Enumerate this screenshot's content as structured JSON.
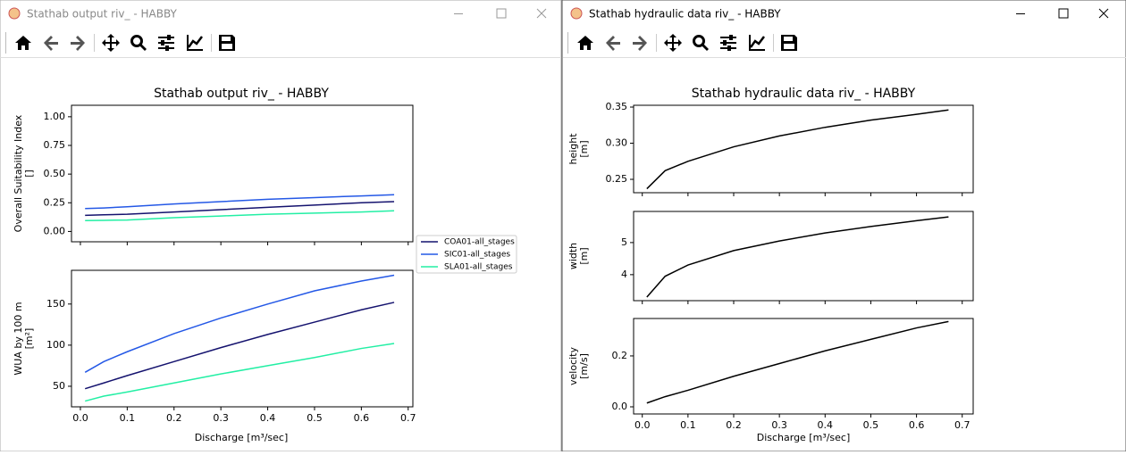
{
  "windows": [
    {
      "title": "Stathab output riv_ - HABBY"
    },
    {
      "title": "Stathab hydraulic data riv_ - HABBY"
    }
  ],
  "figures": [
    {
      "title": "Stathab output riv_ - HABBY",
      "xlabel": "Discharge [m³/sec]"
    },
    {
      "title": "Stathab hydraulic data riv_ - HABBY",
      "xlabel": "Discharge [m³/sec]"
    }
  ],
  "chart_data": [
    {
      "type": "line",
      "ylabel": [
        "Overall Suitability Index",
        "[]"
      ],
      "x": [
        0.01,
        0.05,
        0.1,
        0.2,
        0.3,
        0.4,
        0.5,
        0.6,
        0.67
      ],
      "series": [
        {
          "name": "COA01-all_stages",
          "color": "#14126e",
          "values": [
            0.14,
            0.145,
            0.15,
            0.17,
            0.19,
            0.21,
            0.23,
            0.25,
            0.26
          ]
        },
        {
          "name": "SIC01-all_stages",
          "color": "#2458e6",
          "values": [
            0.2,
            0.205,
            0.215,
            0.24,
            0.26,
            0.28,
            0.295,
            0.31,
            0.32
          ]
        },
        {
          "name": "SLA01-all_stages",
          "color": "#22efa4",
          "values": [
            0.095,
            0.097,
            0.1,
            0.12,
            0.135,
            0.15,
            0.16,
            0.17,
            0.18
          ]
        }
      ],
      "xlim": [
        -0.019,
        0.71
      ],
      "xticks": [
        {
          "value": 0,
          "label": "0.0"
        },
        0.1,
        0.2,
        0.3,
        0.4,
        0.5,
        0.6,
        0.7
      ],
      "ylim": [
        -0.09,
        1.1
      ],
      "yticks": [
        {
          "value": 0,
          "label": "0.00"
        },
        0.25,
        {
          "value": 0.5,
          "label": "0.50"
        },
        0.75,
        {
          "value": 1,
          "label": "1.00"
        }
      ],
      "legend": "right"
    },
    {
      "type": "line",
      "ylabel": [
        "WUA by 100 m",
        "[m²]"
      ],
      "x": [
        0.01,
        0.05,
        0.1,
        0.2,
        0.3,
        0.4,
        0.5,
        0.6,
        0.67
      ],
      "series": [
        {
          "color": "#14126e",
          "values": [
            47,
            54,
            63,
            80,
            97,
            113,
            128,
            143,
            152
          ]
        },
        {
          "color": "#2458e6",
          "values": [
            67,
            80,
            92,
            114,
            133,
            150,
            166,
            178,
            185
          ]
        },
        {
          "color": "#22efa4",
          "values": [
            32,
            38,
            43,
            54,
            65,
            75,
            85,
            96,
            102
          ]
        }
      ],
      "xlim": [
        -0.019,
        0.71
      ],
      "xticks": [
        {
          "value": 0,
          "label": "0.0"
        },
        0.1,
        0.2,
        0.3,
        0.4,
        0.5,
        0.6,
        0.7
      ],
      "ylim": [
        25,
        191
      ],
      "yticks": [
        50,
        100,
        150
      ]
    },
    {
      "type": "line",
      "ylabel": [
        "height",
        "[m]"
      ],
      "x": [
        0.01,
        0.05,
        0.1,
        0.2,
        0.3,
        0.4,
        0.5,
        0.6,
        0.67
      ],
      "series": [
        {
          "color": "#000000",
          "values": [
            0.237,
            0.262,
            0.275,
            0.295,
            0.31,
            0.322,
            0.332,
            0.34,
            0.346
          ]
        }
      ],
      "xlim": [
        -0.019,
        0.724
      ],
      "xticks": [
        {
          "value": 0,
          "label": "0.0"
        },
        0.1,
        0.2,
        0.3,
        0.4,
        0.5,
        0.6,
        0.7
      ],
      "ylim": [
        0.2315,
        0.3525
      ],
      "yticks": [
        0.25,
        {
          "value": 0.3,
          "label": "0.30"
        },
        0.35
      ]
    },
    {
      "type": "line",
      "ylabel": [
        "width",
        "[m]"
      ],
      "x": [
        0.01,
        0.05,
        0.1,
        0.2,
        0.3,
        0.4,
        0.5,
        0.6,
        0.67
      ],
      "series": [
        {
          "color": "#000000",
          "values": [
            3.3,
            3.95,
            4.3,
            4.75,
            5.05,
            5.3,
            5.5,
            5.68,
            5.8
          ]
        }
      ],
      "xlim": [
        -0.019,
        0.724
      ],
      "xticks": [
        {
          "value": 0,
          "label": "0.0"
        },
        0.1,
        0.2,
        0.3,
        0.4,
        0.5,
        0.6,
        0.7
      ],
      "ylim": [
        3.19,
        5.97
      ],
      "yticks": [
        4,
        5
      ]
    },
    {
      "type": "line",
      "ylabel": [
        "velocity",
        "[m/s]"
      ],
      "x": [
        0.01,
        0.05,
        0.1,
        0.2,
        0.3,
        0.4,
        0.5,
        0.6,
        0.67
      ],
      "series": [
        {
          "color": "#000000",
          "values": [
            0.015,
            0.04,
            0.065,
            0.12,
            0.17,
            0.22,
            0.265,
            0.31,
            0.335
          ]
        }
      ],
      "xlim": [
        -0.019,
        0.724
      ],
      "xticks": [
        {
          "value": 0,
          "label": "0.0"
        },
        0.1,
        0.2,
        0.3,
        0.4,
        0.5,
        0.6,
        0.7
      ],
      "ylim": [
        -0.028,
        0.347
      ],
      "yticks": [
        {
          "value": 0,
          "label": "0.0"
        },
        0.2
      ]
    }
  ]
}
